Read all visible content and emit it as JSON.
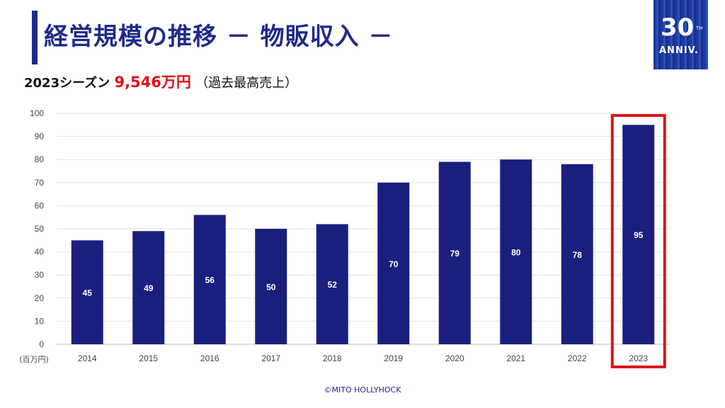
{
  "header": {
    "title": "経営規模の推移 － 物販収入 －",
    "subtitle_prefix": "2023シーズン ",
    "subtitle_amount": "9,546万円",
    "subtitle_note": "（過去最高売上）"
  },
  "logo": {
    "number": "30",
    "suffix": "TH",
    "text": "ANNIV."
  },
  "footer": {
    "copyright": "©MITO HOLLYHOCK"
  },
  "colors": {
    "bar": "#1a1f7e",
    "highlight": "#e0101a",
    "title": "#1f2a8a"
  },
  "chart_data": {
    "type": "bar",
    "categories": [
      "2014",
      "2015",
      "2016",
      "2017",
      "2018",
      "2019",
      "2020",
      "2021",
      "2022",
      "2023"
    ],
    "values": [
      45,
      49,
      56,
      50,
      52,
      70,
      79,
      80,
      78,
      95
    ],
    "ylim": [
      0,
      100
    ],
    "yticks": [
      0,
      10,
      20,
      30,
      40,
      50,
      60,
      70,
      80,
      90,
      100
    ],
    "unit_label": "(百万円)",
    "highlight_category": "2023",
    "grid": true
  }
}
